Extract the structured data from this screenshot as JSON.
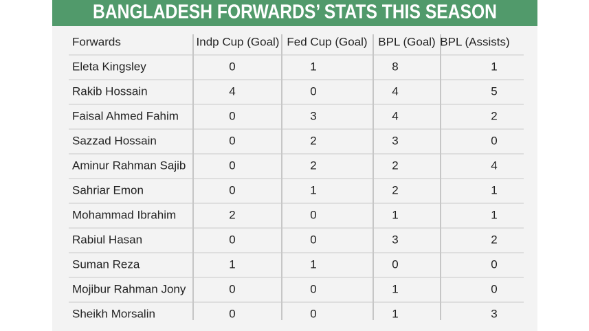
{
  "header": {
    "title": "BANGLADESH FORWARDS’ STATS THIS SEASON"
  },
  "table": {
    "columns": [
      "Forwards",
      "Indp Cup (Goal)",
      "Fed Cup (Goal)",
      "BPL (Goal)",
      "BPL (Assists)"
    ],
    "rows": [
      [
        "Eleta Kingsley",
        0,
        1,
        8,
        1
      ],
      [
        "Rakib Hossain",
        4,
        0,
        4,
        5
      ],
      [
        "Faisal Ahmed Fahim",
        0,
        3,
        4,
        2
      ],
      [
        "Sazzad Hossain",
        0,
        2,
        3,
        0
      ],
      [
        "Aminur Rahman Sajib",
        0,
        2,
        2,
        4
      ],
      [
        "Sahriar Emon",
        0,
        1,
        2,
        1
      ],
      [
        "Mohammad Ibrahim",
        2,
        0,
        1,
        1
      ],
      [
        "Rabiul Hasan",
        0,
        0,
        3,
        2
      ],
      [
        "Suman Reza",
        1,
        1,
        0,
        0
      ],
      [
        "Mojibur Rahman Jony",
        0,
        0,
        1,
        0
      ],
      [
        "Sheikh Morsalin",
        0,
        0,
        1,
        3
      ]
    ]
  }
}
